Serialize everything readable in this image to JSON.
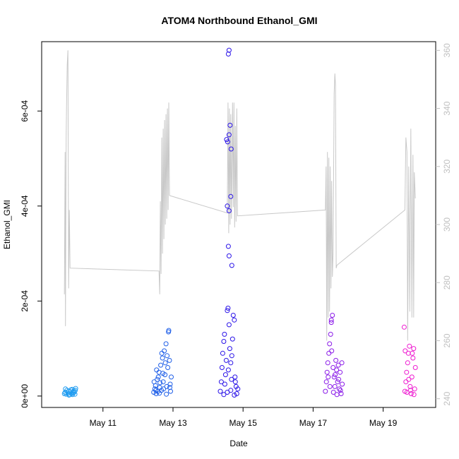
{
  "chart_data": {
    "type": "scatter",
    "title": "ATOM4 Northbound Ethanol_GMI",
    "xlabel": "Date",
    "ylabel": "Ethanol_GMI",
    "x_ticks": [
      {
        "label": "May 11",
        "day": 11
      },
      {
        "label": "May 13",
        "day": 13
      },
      {
        "label": "May 15",
        "day": 15
      },
      {
        "label": "May 17",
        "day": 17
      },
      {
        "label": "May 19",
        "day": 19
      }
    ],
    "xlim_day": [
      9.25,
      20.5
    ],
    "ylim": [
      -2.4e-05,
      0.000746
    ],
    "y_ticks": [
      {
        "label": "0e+00",
        "value": 0
      },
      {
        "label": "2e-04",
        "value": 0.0002
      },
      {
        "label": "4e-04",
        "value": 0.0004
      },
      {
        "label": "6e-04",
        "value": 0.0006
      }
    ],
    "y2lim": [
      237,
      363
    ],
    "y2_ticks": [
      {
        "label": "240",
        "value": 240
      },
      {
        "label": "260",
        "value": 260
      },
      {
        "label": "280",
        "value": 280
      },
      {
        "label": "300",
        "value": 300
      },
      {
        "label": "320",
        "value": 320
      },
      {
        "label": "340",
        "value": 340
      },
      {
        "label": "360",
        "value": 360
      }
    ],
    "colors": {
      "flight1": "#1e9bf0",
      "flight2": "#1f5fe8",
      "flight3": "#2a13e8",
      "flight4": "#8a1ae8",
      "flight5": "#ee1ad0",
      "line": "#c8c8c8"
    },
    "scatter_groups": [
      {
        "color": "#1e9bf0",
        "points": [
          [
            9.9,
            5e-06
          ],
          [
            9.92,
            8e-06
          ],
          [
            9.95,
            4e-06
          ],
          [
            9.97,
            1.2e-05
          ],
          [
            10.0,
            6e-06
          ],
          [
            10.02,
            1e-05
          ],
          [
            10.05,
            3e-06
          ],
          [
            10.07,
            9e-06
          ],
          [
            10.1,
            5e-06
          ],
          [
            10.12,
            1.4e-05
          ],
          [
            10.15,
            7e-06
          ],
          [
            10.17,
            1.1e-05
          ],
          [
            10.2,
            4e-06
          ],
          [
            10.22,
            1.6e-05
          ],
          [
            9.93,
            1.5e-05
          ],
          [
            10.03,
            2e-06
          ],
          [
            10.08,
            1.3e-05
          ],
          [
            10.13,
            3e-06
          ],
          [
            10.18,
            8e-06
          ],
          [
            10.21,
            1.2e-05
          ]
        ]
      },
      {
        "color": "#1f5fe8",
        "points": [
          [
            12.45,
            8e-06
          ],
          [
            12.48,
            1.5e-05
          ],
          [
            12.5,
            2.2e-05
          ],
          [
            12.52,
            5e-06
          ],
          [
            12.55,
            3.5e-05
          ],
          [
            12.57,
            1e-05
          ],
          [
            12.6,
            5e-05
          ],
          [
            12.62,
            1.8e-05
          ],
          [
            12.65,
            6.5e-05
          ],
          [
            12.67,
            1.2e-05
          ],
          [
            12.7,
            8e-05
          ],
          [
            12.72,
            3e-05
          ],
          [
            12.75,
            9.5e-05
          ],
          [
            12.77,
            4.5e-05
          ],
          [
            12.8,
            0.00011
          ],
          [
            12.82,
            2e-05
          ],
          [
            12.85,
            6e-05
          ],
          [
            12.87,
            0.000135
          ],
          [
            12.9,
            7.5e-05
          ],
          [
            12.92,
            2.5e-05
          ],
          [
            12.95,
            4e-05
          ],
          [
            12.88,
            0.000138
          ],
          [
            12.78,
            7e-05
          ],
          [
            12.68,
            9e-05
          ],
          [
            12.58,
            4e-05
          ],
          [
            12.53,
            5.5e-05
          ],
          [
            12.63,
            2.8e-05
          ],
          [
            12.73,
            1.5e-05
          ],
          [
            12.83,
            8.5e-05
          ],
          [
            12.93,
            1e-05
          ],
          [
            12.46,
            3e-05
          ],
          [
            12.51,
            1.2e-05
          ],
          [
            12.61,
            6e-06
          ],
          [
            12.71,
            4.8e-05
          ],
          [
            12.81,
            4e-06
          ],
          [
            12.91,
            1.8e-05
          ]
        ]
      },
      {
        "color": "#2a13e8",
        "points": [
          [
            14.35,
            1e-05
          ],
          [
            14.38,
            3e-05
          ],
          [
            14.4,
            6e-05
          ],
          [
            14.42,
            9e-05
          ],
          [
            14.45,
            0.000115
          ],
          [
            14.47,
            0.00013
          ],
          [
            14.5,
            4.5e-05
          ],
          [
            14.52,
            7.5e-05
          ],
          [
            14.55,
            0.00018
          ],
          [
            14.57,
            0.000185
          ],
          [
            14.6,
            0.00015
          ],
          [
            14.62,
            0.0001
          ],
          [
            14.65,
            7e-05
          ],
          [
            14.67,
            3.5e-05
          ],
          [
            14.7,
            0.00012
          ],
          [
            14.72,
            0.00017
          ],
          [
            14.75,
            0.00016
          ],
          [
            14.77,
            4e-05
          ],
          [
            14.8,
            2e-05
          ],
          [
            14.82,
            5e-06
          ],
          [
            14.45,
            3e-06
          ],
          [
            14.55,
            8e-06
          ],
          [
            14.65,
            1.2e-05
          ],
          [
            14.75,
            2e-06
          ],
          [
            14.85,
            1.5e-05
          ],
          [
            14.53,
            0.00054
          ],
          [
            14.56,
            0.000535
          ],
          [
            14.6,
            0.00055
          ],
          [
            14.63,
            0.00057
          ],
          [
            14.66,
            0.00052
          ],
          [
            14.58,
            0.00072
          ],
          [
            14.6,
            0.000728
          ],
          [
            14.55,
            0.0004
          ],
          [
            14.6,
            0.00039
          ],
          [
            14.65,
            0.00042
          ],
          [
            14.58,
            0.000315
          ],
          [
            14.6,
            0.000295
          ],
          [
            14.68,
            0.000275
          ],
          [
            14.48,
            2.5e-05
          ],
          [
            14.58,
            5.5e-05
          ],
          [
            14.68,
            8.5e-05
          ],
          [
            14.78,
            3e-05
          ]
        ]
      },
      {
        "color": "#8a1ae8",
        "points": [
          [
            17.35,
            1e-05
          ],
          [
            17.38,
            3e-05
          ],
          [
            17.4,
            5e-05
          ],
          [
            17.42,
            7e-05
          ],
          [
            17.45,
            9e-05
          ],
          [
            17.47,
            0.00011
          ],
          [
            17.5,
            0.00013
          ],
          [
            17.52,
            0.000155
          ],
          [
            17.55,
            0.00017
          ],
          [
            17.57,
            6e-05
          ],
          [
            17.6,
            4e-05
          ],
          [
            17.62,
            2e-05
          ],
          [
            17.65,
            7.5e-05
          ],
          [
            17.67,
            5.5e-05
          ],
          [
            17.7,
            3e-05
          ],
          [
            17.72,
            6.5e-05
          ],
          [
            17.75,
            1.5e-05
          ],
          [
            17.77,
            5e-05
          ],
          [
            17.8,
            5e-06
          ],
          [
            17.82,
            7e-05
          ],
          [
            17.48,
            2e-05
          ],
          [
            17.58,
            8e-06
          ],
          [
            17.68,
            3e-06
          ],
          [
            17.78,
            1.2e-05
          ],
          [
            17.53,
            9.5e-05
          ],
          [
            17.63,
            4.5e-05
          ],
          [
            17.73,
            3.5e-05
          ],
          [
            17.43,
            4e-05
          ],
          [
            17.83,
            2.5e-05
          ],
          [
            17.52,
            0.00016
          ]
        ]
      },
      {
        "color": "#ee1ad0",
        "points": [
          [
            19.6,
            0.000145
          ],
          [
            19.62,
            1e-05
          ],
          [
            19.65,
            3e-05
          ],
          [
            19.67,
            5e-05
          ],
          [
            19.7,
            7e-05
          ],
          [
            19.72,
            9e-05
          ],
          [
            19.75,
            0.000105
          ],
          [
            19.77,
            2e-05
          ],
          [
            19.8,
            5e-06
          ],
          [
            19.82,
            4e-05
          ],
          [
            19.85,
            8e-05
          ],
          [
            19.87,
            0.0001
          ],
          [
            19.9,
            1.5e-05
          ],
          [
            19.92,
            6e-05
          ],
          [
            19.68,
            8e-06
          ],
          [
            19.78,
            1.2e-05
          ],
          [
            19.88,
            3e-06
          ],
          [
            19.73,
            3.5e-05
          ],
          [
            19.83,
            9e-05
          ],
          [
            19.63,
            9.5e-05
          ]
        ]
      }
    ],
    "line_series": [
      [
        9.9,
        276
      ],
      [
        9.92,
        325
      ],
      [
        9.93,
        265
      ],
      [
        9.95,
        330
      ],
      [
        9.96,
        340
      ],
      [
        9.98,
        355
      ],
      [
        10.0,
        360
      ],
      [
        10.02,
        278
      ],
      [
        10.04,
        305
      ],
      [
        10.06,
        285
      ],
      [
        12.6,
        284
      ],
      [
        12.62,
        276
      ],
      [
        12.64,
        308
      ],
      [
        12.66,
        283
      ],
      [
        12.68,
        330
      ],
      [
        12.7,
        290
      ],
      [
        12.72,
        333
      ],
      [
        12.74,
        295
      ],
      [
        12.76,
        336
      ],
      [
        12.78,
        300
      ],
      [
        12.8,
        338
      ],
      [
        12.82,
        302
      ],
      [
        12.84,
        340
      ],
      [
        12.86,
        305
      ],
      [
        12.88,
        342
      ],
      [
        12.9,
        310
      ],
      [
        14.55,
        304
      ],
      [
        14.57,
        342
      ],
      [
        14.59,
        297
      ],
      [
        14.61,
        340
      ],
      [
        14.63,
        300
      ],
      [
        14.65,
        338
      ],
      [
        14.67,
        302
      ],
      [
        14.7,
        342
      ],
      [
        14.72,
        306
      ],
      [
        14.74,
        342
      ],
      [
        14.76,
        299
      ],
      [
        14.78,
        334
      ],
      [
        14.8,
        301
      ],
      [
        14.82,
        340
      ],
      [
        14.84,
        303
      ],
      [
        17.35,
        305
      ],
      [
        17.37,
        320
      ],
      [
        17.39,
        260
      ],
      [
        17.41,
        325
      ],
      [
        17.43,
        268
      ],
      [
        17.45,
        323
      ],
      [
        17.47,
        270
      ],
      [
        17.49,
        320
      ],
      [
        17.51,
        278
      ],
      [
        17.53,
        315
      ],
      [
        17.55,
        282
      ],
      [
        17.57,
        290
      ],
      [
        17.6,
        345
      ],
      [
        17.62,
        352
      ],
      [
        17.64,
        348
      ],
      [
        17.66,
        285
      ],
      [
        17.68,
        286
      ],
      [
        19.62,
        305
      ],
      [
        19.65,
        330
      ],
      [
        19.68,
        325
      ],
      [
        19.7,
        260
      ],
      [
        19.73,
        320
      ],
      [
        19.76,
        270
      ],
      [
        19.79,
        333
      ],
      [
        19.82,
        268
      ],
      [
        19.85,
        324
      ],
      [
        19.87,
        268
      ],
      [
        19.89,
        318
      ],
      [
        19.92,
        309
      ]
    ]
  }
}
